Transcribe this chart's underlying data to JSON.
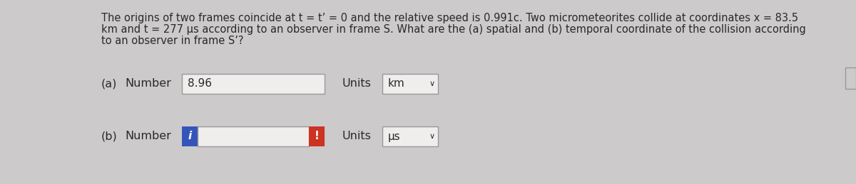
{
  "bg_color": "#cccaca",
  "text_color": "#2a2a2a",
  "title_line1": "The origins of two frames coincide at t = t’ = 0 and the relative speed is 0.991c. Two micrometeorites collide at coordinates x = 83.5",
  "title_line2": "km and t = 277 μs according to an observer in frame S. What are the (a) spatial and (b) temporal coordinate of the collision according",
  "title_line3": "to an observer in frame S’?",
  "part_a_label": "(a)",
  "part_a_number": "Number",
  "part_a_value": "8.96",
  "part_a_units_label": "Units",
  "part_a_units_value": "km",
  "part_b_label": "(b)",
  "part_b_number": "Number",
  "part_b_units_label": "Units",
  "part_b_units_value": "μs",
  "box_facecolor": "#f0eeec",
  "box_edgecolor": "#999999",
  "blue_color": "#3355bb",
  "red_color": "#cc3322",
  "title_fontsize": 10.5,
  "label_fontsize": 11.5,
  "value_fontsize": 11
}
